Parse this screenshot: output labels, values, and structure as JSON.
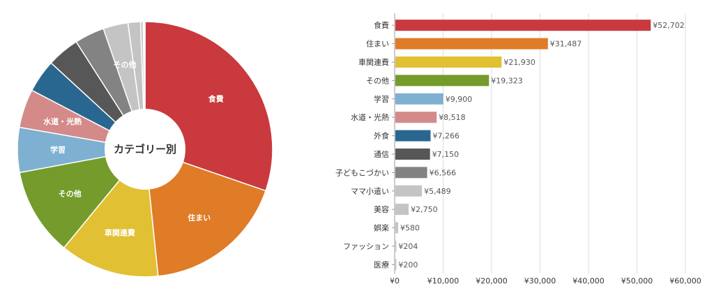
{
  "pie": {
    "center_label": "カテゴリー別"
  },
  "chart_data": [
    {
      "type": "pie",
      "categories": [
        "食費",
        "住まい",
        "車関連費",
        "その他",
        "学習",
        "水道・光熱",
        "外食",
        "通信",
        "子どもこづかい",
        "ママ小遣い",
        "美容",
        "娯楽",
        "ファッション",
        "医療"
      ],
      "values": [
        52702,
        31487,
        21930,
        19323,
        9900,
        8518,
        7266,
        7150,
        6566,
        5489,
        2750,
        580,
        204,
        200
      ],
      "slice_labels": [
        "食費",
        "住まい",
        "車関連費",
        "その他",
        "学習",
        "水道・光熱",
        "",
        "",
        "",
        "その他",
        "",
        "",
        "",
        ""
      ],
      "colors": [
        "#c9393d",
        "#e07b27",
        "#e2c034",
        "#749b2b",
        "#7eb0d1",
        "#d48a89",
        "#2a6790",
        "#575757",
        "#838383",
        "#c4c4c4",
        "#c4c4c4",
        "#c4c4c4",
        "#c4c4c4",
        "#c4c4c4"
      ]
    },
    {
      "type": "bar",
      "orientation": "horizontal",
      "categories": [
        "食費",
        "住まい",
        "車関連費",
        "その他",
        "学習",
        "水道・光熱",
        "外食",
        "通信",
        "子どもこづかい",
        "ママ小遣い",
        "美容",
        "娯楽",
        "ファッション",
        "医療"
      ],
      "values": [
        52702,
        31487,
        21930,
        19323,
        9900,
        8518,
        7266,
        7150,
        6566,
        5489,
        2750,
        580,
        204,
        200
      ],
      "value_labels": [
        "¥52,702",
        "¥31,487",
        "¥21,930",
        "¥19,323",
        "¥9,900",
        "¥8,518",
        "¥7,266",
        "¥7,150",
        "¥6,566",
        "¥5,489",
        "¥2,750",
        "¥580",
        "¥204",
        "¥200"
      ],
      "colors": [
        "#c9393d",
        "#e07b27",
        "#e2c034",
        "#749b2b",
        "#7eb0d1",
        "#d48a89",
        "#2a6790",
        "#575757",
        "#838383",
        "#c4c4c4",
        "#c4c4c4",
        "#c4c4c4",
        "#c4c4c4",
        "#c4c4c4"
      ],
      "xlim": [
        0,
        60000
      ],
      "xticks": [
        0,
        10000,
        20000,
        30000,
        40000,
        50000,
        60000
      ],
      "xtick_labels": [
        "¥0",
        "¥10,000",
        "¥20,000",
        "¥30,000",
        "¥40,000",
        "¥50,000",
        "¥60,000"
      ],
      "grid": true
    }
  ]
}
